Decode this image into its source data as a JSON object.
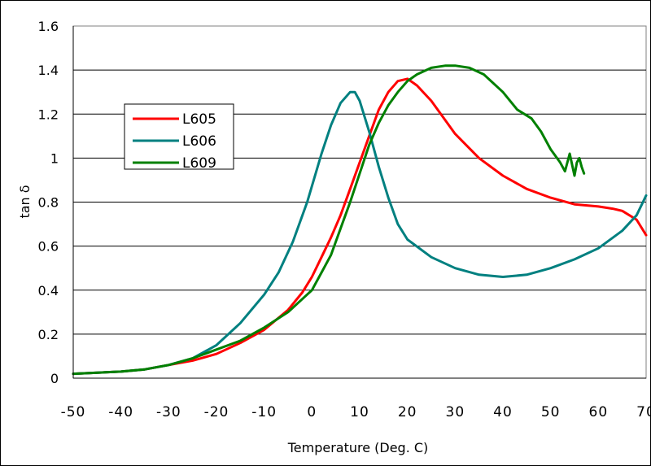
{
  "chart_data": {
    "type": "line",
    "xlabel": "Temperature (Deg. C)",
    "ylabel": "tan δ",
    "xlim": [
      -50,
      70
    ],
    "ylim": [
      0,
      1.6
    ],
    "x_ticks": [
      "-50",
      "-40",
      "-30",
      "-20",
      "-10",
      "0",
      "10",
      "20",
      "30",
      "40",
      "50",
      "60",
      "70"
    ],
    "y_ticks": [
      "0",
      "0.2",
      "0.4",
      "0.6",
      "0.8",
      "1",
      "1.2",
      "1.4",
      "1.6"
    ],
    "grid": "horizontal",
    "legend_position": "upper-left",
    "series": [
      {
        "name": "L605",
        "color": "#ff0000",
        "x": [
          -50,
          -40,
          -35,
          -30,
          -25,
          -20,
          -15,
          -10,
          -5,
          -2,
          0,
          2,
          4,
          6,
          8,
          10,
          12,
          14,
          16,
          18,
          20,
          22,
          25,
          28,
          30,
          35,
          40,
          45,
          50,
          55,
          60,
          63,
          65,
          68,
          70
        ],
        "y": [
          0.02,
          0.03,
          0.04,
          0.06,
          0.08,
          0.11,
          0.16,
          0.22,
          0.31,
          0.39,
          0.46,
          0.55,
          0.64,
          0.74,
          0.86,
          0.98,
          1.1,
          1.22,
          1.3,
          1.35,
          1.36,
          1.33,
          1.26,
          1.17,
          1.11,
          1.0,
          0.92,
          0.86,
          0.82,
          0.79,
          0.78,
          0.77,
          0.76,
          0.72,
          0.65
        ]
      },
      {
        "name": "L606",
        "color": "#008080",
        "x": [
          -50,
          -40,
          -35,
          -30,
          -25,
          -20,
          -15,
          -10,
          -7,
          -4,
          -1,
          2,
          4,
          6,
          8,
          9,
          10,
          12,
          14,
          16,
          18,
          20,
          25,
          30,
          35,
          40,
          45,
          50,
          55,
          60,
          65,
          68,
          70
        ],
        "y": [
          0.02,
          0.03,
          0.04,
          0.06,
          0.09,
          0.15,
          0.25,
          0.38,
          0.48,
          0.62,
          0.8,
          1.02,
          1.15,
          1.25,
          1.3,
          1.3,
          1.26,
          1.12,
          0.96,
          0.82,
          0.7,
          0.63,
          0.55,
          0.5,
          0.47,
          0.46,
          0.47,
          0.5,
          0.54,
          0.59,
          0.67,
          0.74,
          0.83
        ]
      },
      {
        "name": "L609",
        "color": "#008000",
        "x": [
          -50,
          -40,
          -35,
          -30,
          -25,
          -20,
          -15,
          -10,
          -5,
          0,
          2,
          4,
          6,
          8,
          10,
          12,
          14,
          16,
          18,
          20,
          22,
          25,
          28,
          30,
          33,
          36,
          40,
          43,
          46,
          48,
          50,
          52,
          53,
          54,
          55,
          55.5,
          56,
          56.5,
          57
        ],
        "y": [
          0.02,
          0.03,
          0.04,
          0.06,
          0.09,
          0.13,
          0.17,
          0.23,
          0.3,
          0.4,
          0.48,
          0.56,
          0.68,
          0.8,
          0.93,
          1.06,
          1.16,
          1.24,
          1.3,
          1.35,
          1.38,
          1.41,
          1.42,
          1.42,
          1.41,
          1.38,
          1.3,
          1.22,
          1.18,
          1.12,
          1.04,
          0.98,
          0.94,
          1.02,
          0.92,
          0.98,
          1.0,
          0.96,
          0.93
        ]
      }
    ]
  }
}
